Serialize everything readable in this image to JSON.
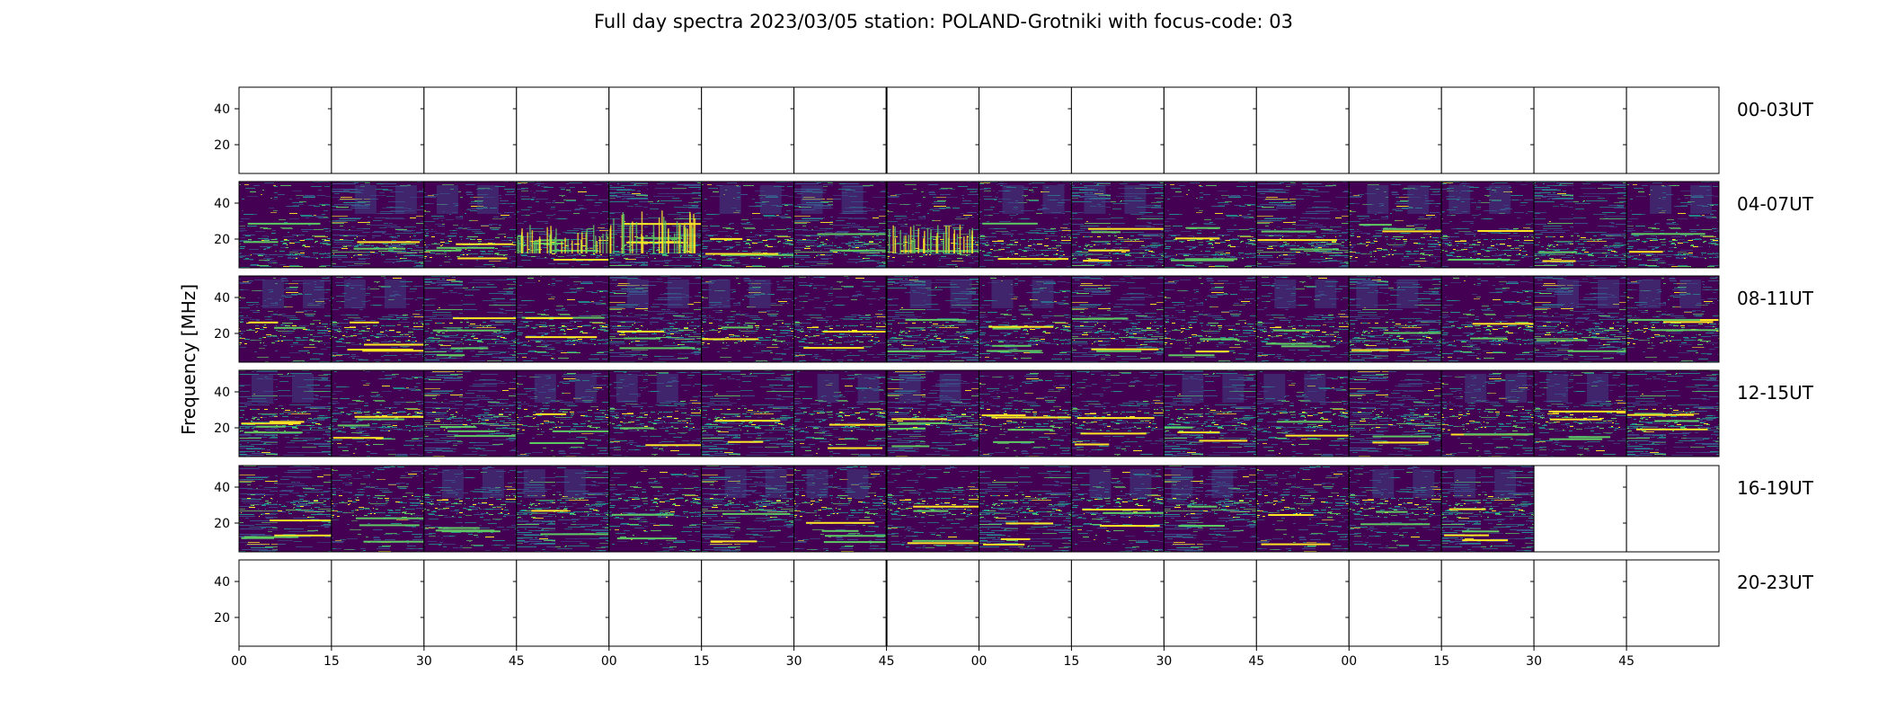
{
  "chart_data": {
    "type": "heatmap",
    "title": "Full day spectra 2023/03/05 station: POLAND-Grotniki with focus-code: 03",
    "ylabel": "Frequency [MHz]",
    "xlabel": "",
    "ylim": [
      4,
      52
    ],
    "yticks": [
      20,
      40
    ],
    "xtick_labels": [
      "00",
      "15",
      "30",
      "45",
      "00",
      "15",
      "30",
      "45",
      "00",
      "15",
      "30",
      "45",
      "00",
      "15",
      "30",
      "45"
    ],
    "colormap": [
      "#440154",
      "#3b528b",
      "#21918c",
      "#5ec962",
      "#fde725"
    ],
    "grid": false,
    "rows": [
      {
        "label": "00-03UT",
        "panels_with_data": 0
      },
      {
        "label": "04-07UT",
        "panels_with_data": 16
      },
      {
        "label": "08-11UT",
        "panels_with_data": 16
      },
      {
        "label": "12-15UT",
        "panels_with_data": 16
      },
      {
        "label": "16-19UT",
        "panels_with_data": 14
      },
      {
        "label": "20-23UT",
        "panels_with_data": 0
      }
    ]
  }
}
